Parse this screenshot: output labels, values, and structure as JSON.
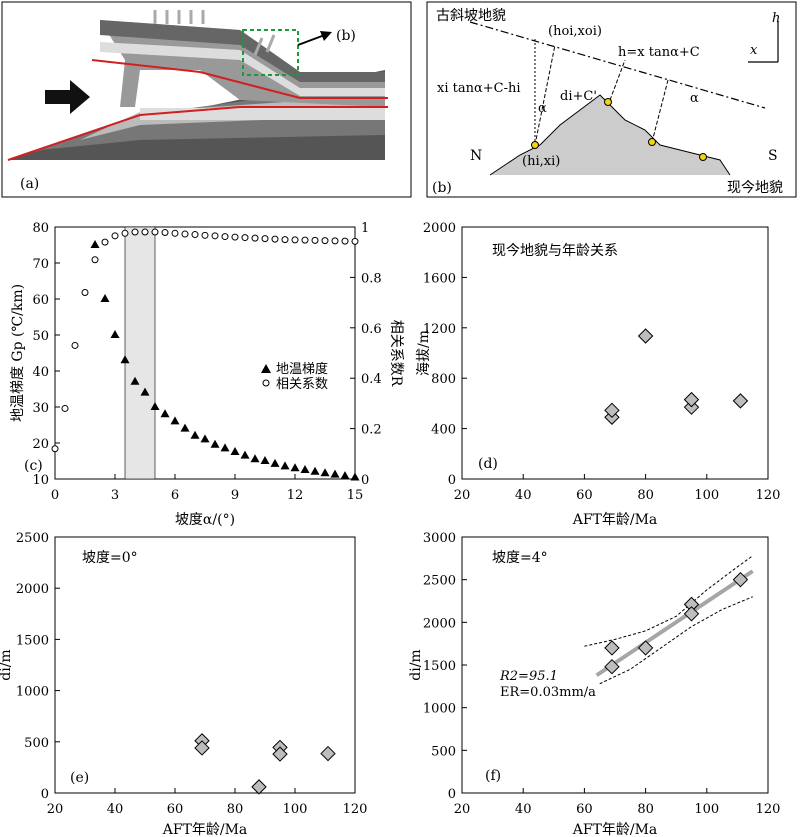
{
  "panel_a": {
    "label": "(a)",
    "callout": "(b)"
  },
  "panel_b": {
    "label": "(b)",
    "paleo_label": "古斜坡地貌",
    "modern_label": "现今地貌",
    "h_axis": "h",
    "x_axis": "x",
    "point_top": "(hoi,xoi)",
    "point_bottom": "(hi,xi)",
    "eq_line": "h=x tanα+C",
    "eq_left": "xi tanα+C-hi",
    "eq_di": "di+C'",
    "alpha": "α",
    "north": "N",
    "south": "S"
  },
  "chart_data": [
    {
      "id": "c",
      "type": "scatter",
      "panel_label": "(c)",
      "xlabel": "坡度α/(°)",
      "ylabel_left": "地温梯度 Gp (℃/km)",
      "ylabel_right": "相关系数R",
      "xlim": [
        0,
        15
      ],
      "ylim_left": [
        10,
        80
      ],
      "ylim_right": [
        0,
        1
      ],
      "xticks": [
        0,
        3,
        6,
        9,
        12,
        15
      ],
      "yticks_left": [
        10,
        20,
        30,
        40,
        50,
        60,
        70,
        80
      ],
      "yticks_right": [
        0,
        0.2,
        0.4,
        0.6,
        0.8,
        1
      ],
      "shaded_x": [
        3.5,
        5
      ],
      "legend": {
        "position": "right",
        "items": [
          "地温梯度",
          "相关系数"
        ]
      },
      "series": [
        {
          "name": "地温梯度",
          "marker": "triangle",
          "x": [
            2,
            2.5,
            3,
            3.5,
            4,
            4.5,
            5,
            5.5,
            6,
            6.5,
            7,
            7.5,
            8,
            8.5,
            9,
            9.5,
            10,
            10.5,
            11,
            11.5,
            12,
            12.5,
            13,
            13.5,
            14,
            14.5,
            15
          ],
          "y": [
            75,
            60,
            50,
            43,
            37,
            34,
            30,
            28,
            26,
            24,
            22,
            21,
            19.5,
            18.5,
            17.5,
            16.5,
            15.5,
            15,
            14.2,
            13.5,
            13,
            12.5,
            12,
            11.6,
            11.2,
            10.8,
            10.4
          ]
        },
        {
          "name": "相关系数",
          "marker": "circle",
          "x": [
            0,
            0.5,
            1,
            1.5,
            2,
            2.5,
            3,
            3.5,
            4,
            4.5,
            5,
            5.5,
            6,
            6.5,
            7,
            7.5,
            8,
            8.5,
            9,
            9.5,
            10,
            10.5,
            11,
            11.5,
            12,
            12.5,
            13,
            13.5,
            14,
            14.5,
            15
          ],
          "y": [
            0.12,
            0.28,
            0.53,
            0.74,
            0.87,
            0.94,
            0.965,
            0.975,
            0.98,
            0.98,
            0.98,
            0.978,
            0.975,
            0.972,
            0.97,
            0.967,
            0.965,
            0.962,
            0.96,
            0.958,
            0.956,
            0.954,
            0.952,
            0.95,
            0.949,
            0.948,
            0.947,
            0.946,
            0.945,
            0.944,
            0.943
          ]
        }
      ]
    },
    {
      "id": "d",
      "type": "scatter",
      "panel_label": "(d)",
      "title": "现今地貌与年龄关系",
      "xlabel": "AFT年龄/Ma",
      "ylabel": "海拔/m",
      "xlim": [
        20,
        120
      ],
      "ylim": [
        0,
        2000
      ],
      "xticks": [
        20,
        40,
        60,
        80,
        100,
        120
      ],
      "yticks": [
        0,
        400,
        800,
        1200,
        1600,
        2000
      ],
      "points": {
        "x": [
          69,
          69,
          80,
          95,
          95,
          111
        ],
        "y": [
          490,
          545,
          1135,
          570,
          630,
          620
        ]
      }
    },
    {
      "id": "e",
      "type": "scatter",
      "panel_label": "(e)",
      "title": "坡度=0°",
      "xlabel": "AFT年龄/Ma",
      "ylabel": "di/m",
      "xlim": [
        20,
        120
      ],
      "ylim": [
        0,
        2500
      ],
      "xticks": [
        20,
        40,
        60,
        80,
        100,
        120
      ],
      "yticks": [
        0,
        500,
        1000,
        1500,
        2000,
        2500
      ],
      "points": {
        "x": [
          69,
          69,
          88,
          95,
          95,
          111
        ],
        "y": [
          510,
          440,
          60,
          445,
          380,
          385
        ]
      }
    },
    {
      "id": "f",
      "type": "scatter",
      "panel_label": "(f)",
      "title": "坡度=4°",
      "xlabel": "AFT年龄/Ma",
      "ylabel": "di/m",
      "xlim": [
        20,
        120
      ],
      "ylim": [
        0,
        3000
      ],
      "xticks": [
        20,
        40,
        60,
        80,
        100,
        120
      ],
      "yticks": [
        0,
        500,
        1000,
        1500,
        2000,
        2500,
        3000
      ],
      "points": {
        "x": [
          69,
          69,
          80,
          95,
          95,
          111
        ],
        "y": [
          1700,
          1480,
          1700,
          2210,
          2100,
          2500
        ]
      },
      "fit_line": {
        "x": [
          64,
          115
        ],
        "y": [
          1380,
          2600
        ]
      },
      "confidence_upper": {
        "x": [
          60,
          70,
          80,
          90,
          100,
          110,
          115
        ],
        "y": [
          1720,
          1800,
          1900,
          2070,
          2380,
          2650,
          2780
        ]
      },
      "confidence_lower": {
        "x": [
          65,
          75,
          85,
          95,
          105,
          115
        ],
        "y": [
          1280,
          1450,
          1700,
          1950,
          2150,
          2300
        ]
      },
      "annotation_r2": "R2=95.1",
      "annotation_er": "ER=0.03mm/a"
    }
  ]
}
